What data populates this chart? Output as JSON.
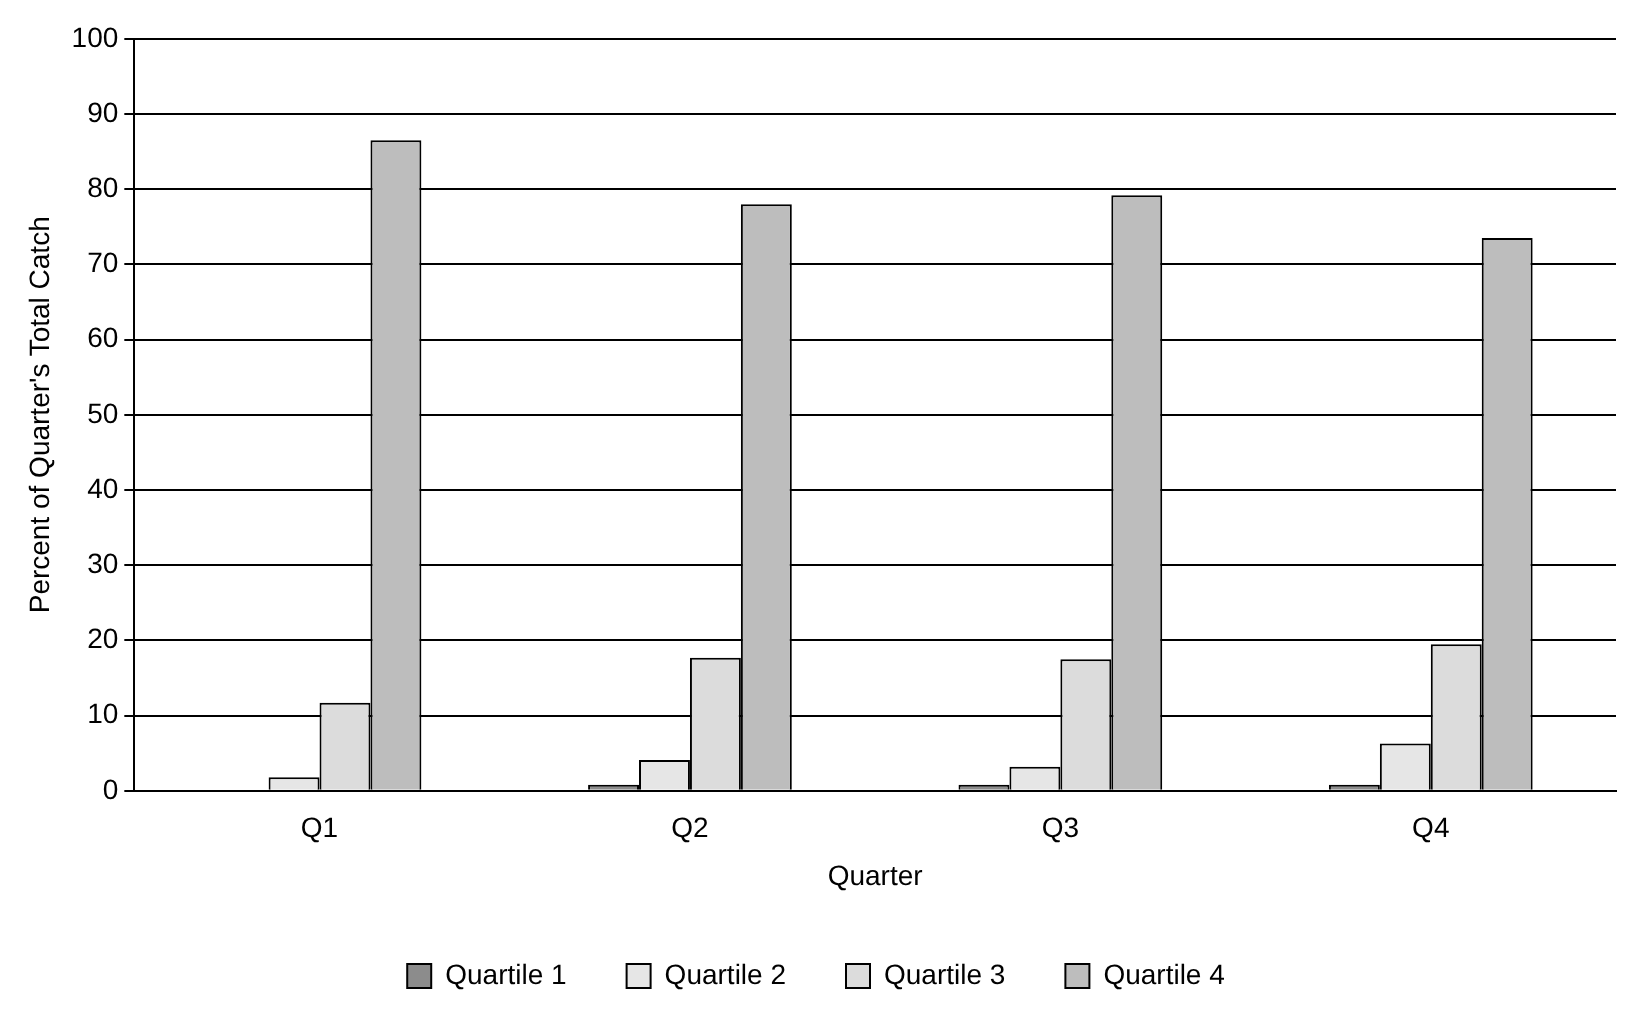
{
  "chart_data": {
    "type": "bar",
    "xlabel": "Quarter",
    "ylabel": "Percent of Quarter's Total Catch",
    "categories": [
      "Q1",
      "Q2",
      "Q3",
      "Q4"
    ],
    "series": [
      {
        "name": "Quartile 1",
        "color": "#8c8c8c",
        "values": [
          null,
          0.2,
          0.2,
          0.6
        ]
      },
      {
        "name": "Quartile 2",
        "color": "#e6e6e6",
        "values": [
          1.8,
          4.1,
          3.2,
          6.3
        ]
      },
      {
        "name": "Quartile 3",
        "color": "#dcdcdc",
        "values": [
          11.7,
          17.7,
          17.5,
          19.5
        ]
      },
      {
        "name": "Quartile 4",
        "color": "#bdbdbd",
        "values": [
          86.5,
          78,
          79.2,
          73.5
        ]
      }
    ],
    "ylim": [
      0,
      100
    ],
    "yticks": [
      0,
      10,
      20,
      30,
      40,
      50,
      60,
      70,
      80,
      90,
      100
    ],
    "grid": "y",
    "legend": "bottom"
  }
}
